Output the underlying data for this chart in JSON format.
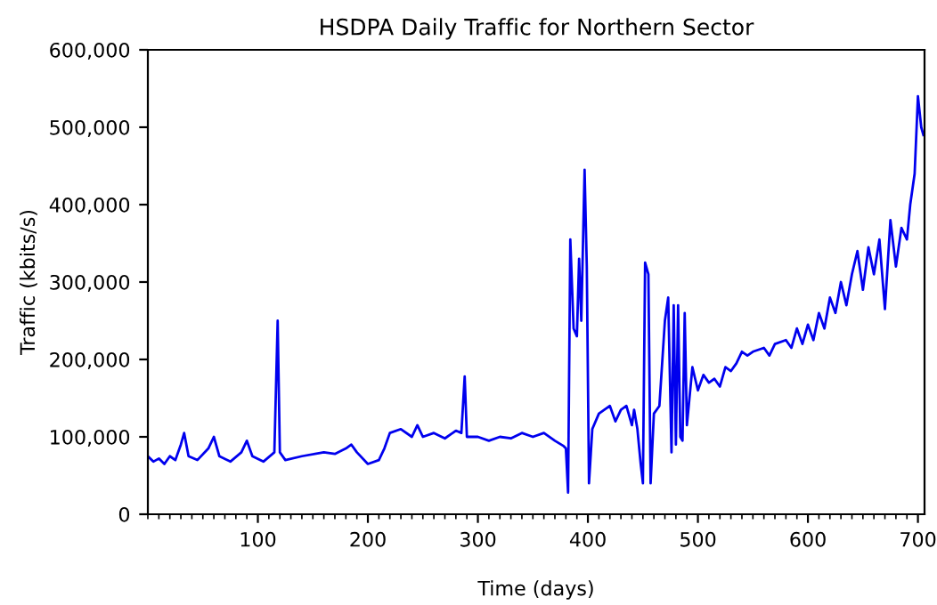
{
  "chart_data": {
    "type": "line",
    "title": "HSDPA Daily Traffic for Northern Sector",
    "xlabel": "Time (days)",
    "ylabel": "Traffic (kbits/s)",
    "xlim": [
      0,
      706
    ],
    "ylim": [
      0,
      600000
    ],
    "xticks": [
      100,
      200,
      300,
      400,
      500,
      600,
      700
    ],
    "yticks": [
      {
        "value": 0,
        "label": "0"
      },
      {
        "value": 100000,
        "label": "100,000"
      },
      {
        "value": 200000,
        "label": "200,000"
      },
      {
        "value": 300000,
        "label": "300,000"
      },
      {
        "value": 400000,
        "label": "400,000"
      },
      {
        "value": 500000,
        "label": "500,000"
      },
      {
        "value": 600000,
        "label": "600,000"
      }
    ],
    "grid": false,
    "legend": false,
    "marker": "none",
    "line_style": "solid",
    "series": [
      {
        "color": "#0000ee",
        "x": [
          0,
          5,
          10,
          15,
          20,
          25,
          30,
          33,
          37,
          45,
          55,
          60,
          65,
          75,
          85,
          90,
          95,
          105,
          115,
          118,
          120,
          125,
          140,
          160,
          170,
          180,
          185,
          190,
          200,
          210,
          215,
          220,
          230,
          240,
          245,
          250,
          260,
          270,
          280,
          285,
          288,
          290,
          300,
          310,
          320,
          330,
          340,
          350,
          360,
          370,
          378,
          380,
          382,
          384,
          387,
          390,
          392,
          394,
          397,
          399,
          401,
          404,
          410,
          420,
          425,
          430,
          435,
          440,
          442,
          445,
          448,
          450,
          452,
          455,
          457,
          460,
          465,
          470,
          473,
          476,
          478,
          480,
          482,
          484,
          486,
          488,
          490,
          495,
          500,
          505,
          510,
          515,
          520,
          525,
          530,
          535,
          540,
          545,
          550,
          560,
          565,
          570,
          580,
          585,
          590,
          595,
          600,
          605,
          610,
          615,
          620,
          625,
          630,
          635,
          640,
          645,
          650,
          655,
          660,
          665,
          670,
          675,
          680,
          685,
          690,
          693,
          697,
          700,
          703,
          705
        ],
        "values": [
          75000,
          68000,
          72000,
          65000,
          75000,
          70000,
          90000,
          105000,
          75000,
          70000,
          85000,
          100000,
          75000,
          68000,
          80000,
          95000,
          75000,
          68000,
          80000,
          250000,
          80000,
          70000,
          75000,
          80000,
          78000,
          85000,
          90000,
          80000,
          65000,
          70000,
          85000,
          105000,
          110000,
          100000,
          115000,
          100000,
          105000,
          98000,
          108000,
          105000,
          178000,
          100000,
          100000,
          95000,
          100000,
          98000,
          105000,
          100000,
          105000,
          95000,
          88000,
          85000,
          28000,
          355000,
          240000,
          230000,
          330000,
          250000,
          445000,
          320000,
          40000,
          110000,
          130000,
          140000,
          120000,
          135000,
          140000,
          115000,
          135000,
          110000,
          65000,
          40000,
          325000,
          310000,
          40000,
          130000,
          140000,
          250000,
          280000,
          80000,
          270000,
          90000,
          270000,
          100000,
          95000,
          260000,
          115000,
          190000,
          160000,
          180000,
          170000,
          175000,
          165000,
          190000,
          185000,
          195000,
          210000,
          205000,
          210000,
          215000,
          205000,
          220000,
          225000,
          215000,
          240000,
          220000,
          245000,
          225000,
          260000,
          240000,
          280000,
          260000,
          300000,
          270000,
          310000,
          340000,
          290000,
          345000,
          310000,
          355000,
          265000,
          380000,
          320000,
          370000,
          355000,
          400000,
          440000,
          540000,
          500000,
          490000
        ]
      }
    ]
  }
}
